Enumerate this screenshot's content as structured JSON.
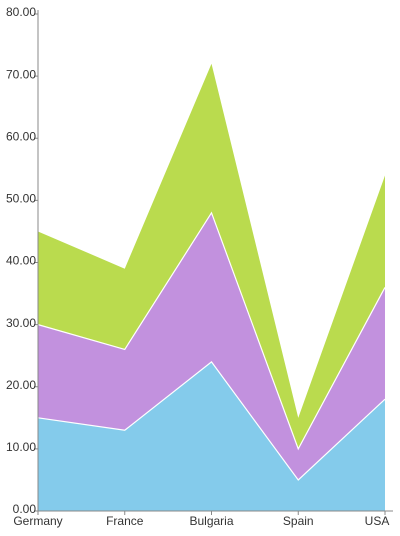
{
  "chart_data": {
    "type": "stacked_area",
    "categories": [
      "Germany",
      "France",
      "Bulgaria",
      "Spain",
      "USA"
    ],
    "series": [
      {
        "color": "#84cbeb",
        "values": [
          15,
          13,
          24,
          5,
          18
        ]
      },
      {
        "color": "#c291de",
        "values": [
          15,
          13,
          24,
          5,
          18
        ]
      },
      {
        "color": "#badb4e",
        "values": [
          15,
          13,
          24,
          5,
          18
        ]
      }
    ],
    "ylim": [
      0,
      80
    ],
    "yticks": [
      {
        "value": 0,
        "label": "0.00"
      },
      {
        "value": 10,
        "label": "10.00"
      },
      {
        "value": 20,
        "label": "20.00"
      },
      {
        "value": 30,
        "label": "30.00"
      },
      {
        "value": 40,
        "label": "40.00"
      },
      {
        "value": 50,
        "label": "50.00"
      },
      {
        "value": 60,
        "label": "60.00"
      },
      {
        "value": 70,
        "label": "70.00"
      },
      {
        "value": 80,
        "label": "80.00"
      }
    ],
    "grid": false
  }
}
